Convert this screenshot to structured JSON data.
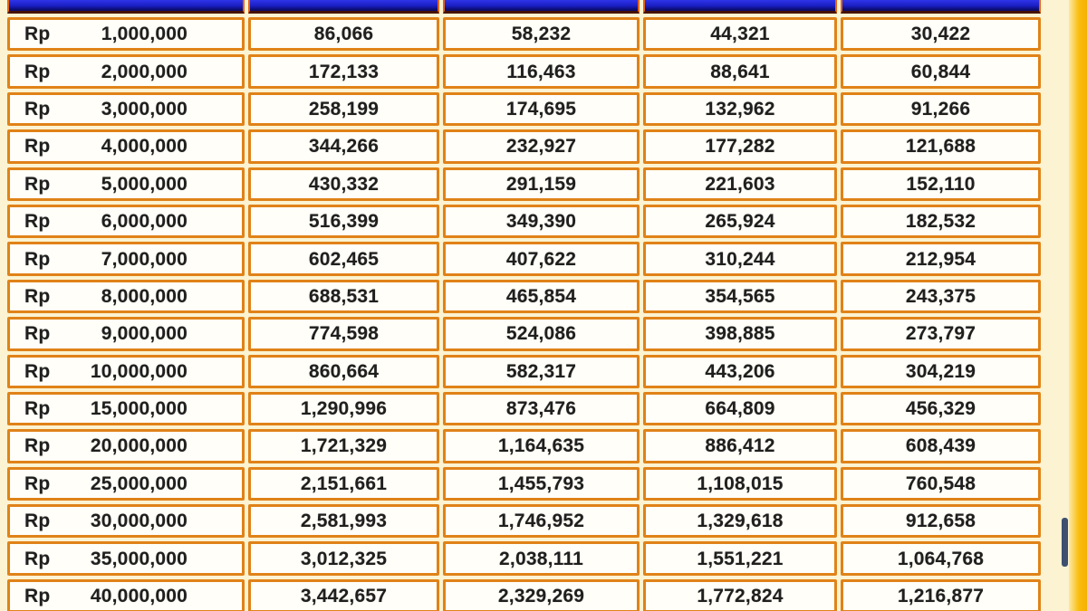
{
  "colors": {
    "page_background": "#FBF3D1",
    "cell_border_orange": "#E08218",
    "cell_background": "#FFFEF8",
    "header_blue_top": "#2E34EA",
    "header_blue_bottom": "#0B0D70",
    "header_maroon_edge": "#471202",
    "gold_strip": "#F7B50A",
    "scrollbar_thumb": "#3E4F70",
    "text": "#1F1F1F"
  },
  "table": {
    "currency_prefix": "Rp",
    "column_count": 5
  },
  "chart_data": {
    "type": "table",
    "header_row_cropped": true,
    "legend_position": "none",
    "rows": [
      {
        "amount": "1,000,000",
        "values": [
          "86,066",
          "58,232",
          "44,321",
          "30,422"
        ]
      },
      {
        "amount": "2,000,000",
        "values": [
          "172,133",
          "116,463",
          "88,641",
          "60,844"
        ]
      },
      {
        "amount": "3,000,000",
        "values": [
          "258,199",
          "174,695",
          "132,962",
          "91,266"
        ]
      },
      {
        "amount": "4,000,000",
        "values": [
          "344,266",
          "232,927",
          "177,282",
          "121,688"
        ]
      },
      {
        "amount": "5,000,000",
        "values": [
          "430,332",
          "291,159",
          "221,603",
          "152,110"
        ]
      },
      {
        "amount": "6,000,000",
        "values": [
          "516,399",
          "349,390",
          "265,924",
          "182,532"
        ]
      },
      {
        "amount": "7,000,000",
        "values": [
          "602,465",
          "407,622",
          "310,244",
          "212,954"
        ]
      },
      {
        "amount": "8,000,000",
        "values": [
          "688,531",
          "465,854",
          "354,565",
          "243,375"
        ]
      },
      {
        "amount": "9,000,000",
        "values": [
          "774,598",
          "524,086",
          "398,885",
          "273,797"
        ]
      },
      {
        "amount": "10,000,000",
        "values": [
          "860,664",
          "582,317",
          "443,206",
          "304,219"
        ]
      },
      {
        "amount": "15,000,000",
        "values": [
          "1,290,996",
          "873,476",
          "664,809",
          "456,329"
        ]
      },
      {
        "amount": "20,000,000",
        "values": [
          "1,721,329",
          "1,164,635",
          "886,412",
          "608,439"
        ]
      },
      {
        "amount": "25,000,000",
        "values": [
          "2,151,661",
          "1,455,793",
          "1,108,015",
          "760,548"
        ]
      },
      {
        "amount": "30,000,000",
        "values": [
          "2,581,993",
          "1,746,952",
          "1,329,618",
          "912,658"
        ]
      },
      {
        "amount": "35,000,000",
        "values": [
          "3,012,325",
          "2,038,111",
          "1,551,221",
          "1,064,768"
        ]
      },
      {
        "amount": "40,000,000",
        "values": [
          "3,442,657",
          "2,329,269",
          "1,772,824",
          "1,216,877"
        ]
      }
    ]
  },
  "scrollbar": {
    "thumb_visible": true
  }
}
